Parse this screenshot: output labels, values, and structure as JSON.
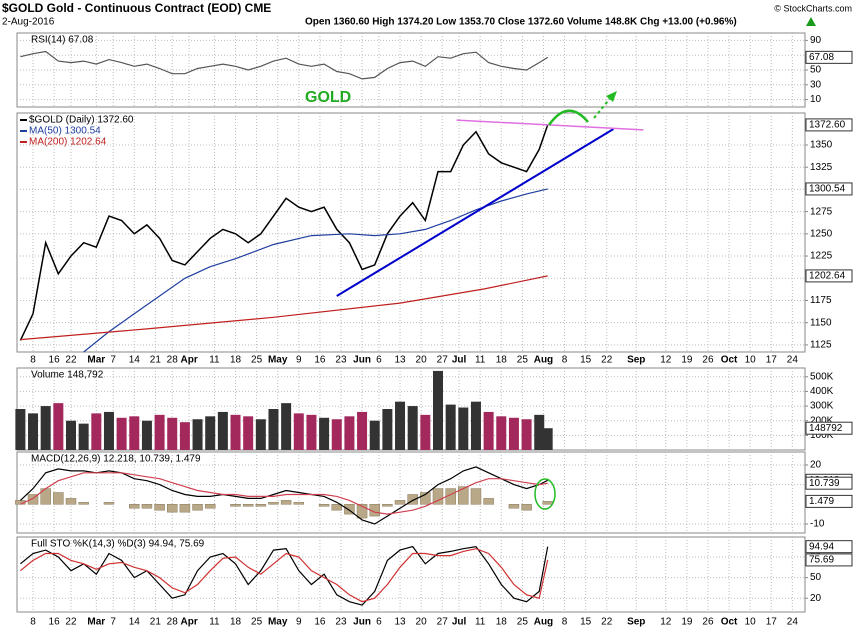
{
  "header": {
    "symbol_line": "$GOLD Gold - Continuous Contract (EOD) CME",
    "date": "2-Aug-2016",
    "quote": "Open 1360.60 High 1374.20 Low 1353.70 Close 1372.60 Volume 148.8K Chg +13.00 (+0.96%)",
    "credit": "© StockCharts.com"
  },
  "chart_data": [
    {
      "type": "line",
      "title": "RSI(14) 67.08",
      "ylim": [
        0,
        100
      ],
      "yticks": [
        10,
        30,
        50,
        70,
        90
      ],
      "grid": true,
      "tags": true,
      "x": [
        0,
        3,
        6,
        9,
        12,
        15,
        18,
        21,
        24,
        27,
        30,
        33,
        36,
        39,
        42,
        45,
        48,
        51,
        54,
        57,
        60,
        63,
        66,
        69,
        72,
        75,
        78,
        81,
        84,
        87,
        90,
        93,
        96,
        99,
        102,
        105,
        108,
        111,
        114,
        117,
        120,
        123,
        125
      ],
      "series": [
        {
          "name": "RSI(14)",
          "color": "#555555",
          "values": [
            68,
            72,
            75,
            62,
            60,
            62,
            58,
            64,
            60,
            55,
            58,
            52,
            45,
            45,
            52,
            55,
            58,
            55,
            50,
            55,
            62,
            66,
            58,
            55,
            58,
            48,
            45,
            38,
            40,
            52,
            60,
            62,
            55,
            68,
            66,
            72,
            74,
            60,
            55,
            52,
            50,
            60,
            67.08
          ]
        }
      ]
    },
    {
      "type": "line",
      "annotation": "GOLD",
      "ylim": [
        1117,
        1386
      ],
      "yticks": [
        1125,
        1150,
        1175,
        1200,
        1225,
        1250,
        1275,
        1300,
        1325,
        1350
      ],
      "grid": true,
      "tags": true,
      "legend": true,
      "xlim": [
        -0.8,
        186
      ],
      "xticks": [
        {
          "value": 3,
          "label": "8"
        },
        {
          "value": 8,
          "label": "16"
        },
        {
          "value": 12,
          "label": "22"
        },
        {
          "value": 18,
          "label": "Mar"
        },
        {
          "value": 22,
          "label": "7"
        },
        {
          "value": 27,
          "label": "14"
        },
        {
          "value": 32,
          "label": "21"
        },
        {
          "value": 36,
          "label": "28"
        },
        {
          "value": 40,
          "label": "Apr"
        },
        {
          "value": 46,
          "label": "11"
        },
        {
          "value": 51,
          "label": "18"
        },
        {
          "value": 56,
          "label": "25"
        },
        {
          "value": 61,
          "label": "May"
        },
        {
          "value": 66,
          "label": "9"
        },
        {
          "value": 71,
          "label": "16"
        },
        {
          "value": 76,
          "label": "23"
        },
        {
          "value": 81,
          "label": "Jun"
        },
        {
          "value": 85,
          "label": "6"
        },
        {
          "value": 90,
          "label": "13"
        },
        {
          "value": 95,
          "label": "20"
        },
        {
          "value": 100,
          "label": "27"
        },
        {
          "value": 104,
          "label": "Jul"
        },
        {
          "value": 109,
          "label": "11"
        },
        {
          "value": 114,
          "label": "18"
        },
        {
          "value": 119,
          "label": "25"
        },
        {
          "value": 124,
          "label": "Aug"
        },
        {
          "value": 129,
          "label": "8"
        },
        {
          "value": 134,
          "label": "15"
        },
        {
          "value": 139,
          "label": "22"
        },
        {
          "value": 146,
          "label": "Sep"
        },
        {
          "value": 153,
          "label": "12"
        },
        {
          "value": 158,
          "label": "19"
        },
        {
          "value": 163,
          "label": "26"
        },
        {
          "value": 168,
          "label": "Oct"
        },
        {
          "value": 173,
          "label": "10"
        },
        {
          "value": 178,
          "label": "17"
        },
        {
          "value": 183,
          "label": "24"
        }
      ],
      "x": [
        0,
        3,
        6,
        9,
        12,
        15,
        18,
        21,
        24,
        27,
        30,
        33,
        36,
        39,
        42,
        45,
        48,
        51,
        54,
        57,
        60,
        63,
        66,
        69,
        72,
        75,
        78,
        81,
        84,
        87,
        90,
        93,
        96,
        99,
        102,
        105,
        108,
        111,
        114,
        117,
        120,
        123,
        125
      ],
      "series": [
        {
          "name": "$GOLD (Daily) 1372.60",
          "color": "#000000",
          "tag_label": "1372.60",
          "values": [
            1130,
            1160,
            1240,
            1205,
            1225,
            1240,
            1235,
            1270,
            1265,
            1250,
            1260,
            1245,
            1220,
            1215,
            1230,
            1245,
            1255,
            1250,
            1240,
            1250,
            1270,
            1290,
            1280,
            1275,
            1280,
            1255,
            1240,
            1210,
            1215,
            1250,
            1270,
            1285,
            1265,
            1320,
            1320,
            1350,
            1365,
            1340,
            1330,
            1325,
            1320,
            1345,
            1372.6
          ]
        },
        {
          "name": "MA(50) 1300.54",
          "color": "#1f3fa0",
          "x": [
            15,
            21,
            30,
            39,
            45,
            51,
            60,
            69,
            78,
            84,
            90,
            96,
            102,
            108,
            114,
            120,
            125
          ],
          "values": [
            1117,
            1140,
            1170,
            1200,
            1213,
            1222,
            1238,
            1248,
            1250,
            1248,
            1250,
            1255,
            1265,
            1277,
            1287,
            1295,
            1300.54
          ]
        },
        {
          "name": "MA(200) 1202.64",
          "color": "#c0201f",
          "x": [
            0,
            30,
            60,
            90,
            110,
            125
          ],
          "values": [
            1131,
            1143,
            1156,
            1172,
            1188,
            1202.64
          ]
        }
      ],
      "trendlines": [
        {
          "color": "#0000cc",
          "points": [
            [
              75,
              1180
            ],
            [
              140.6,
              1368
            ]
          ]
        },
        {
          "color": "#e070e0",
          "points": [
            [
              103.4,
              1378
            ],
            [
              147.7,
              1367
            ]
          ]
        }
      ]
    },
    {
      "type": "bar",
      "title": "Volume 148,792",
      "ylim": [
        0,
        560000
      ],
      "yticks": [
        {
          "value": 100000,
          "label": "100K"
        },
        {
          "value": 200000,
          "label": "200K"
        },
        {
          "value": 300000,
          "label": "300K"
        },
        {
          "value": 400000,
          "label": "400K"
        },
        {
          "value": 500000,
          "label": "500K"
        }
      ],
      "grid": true,
      "tags": true,
      "up_color": "#333333",
      "down_color": "#a3285c",
      "x": [
        0,
        3,
        6,
        9,
        12,
        15,
        18,
        21,
        24,
        27,
        30,
        33,
        36,
        39,
        42,
        45,
        48,
        51,
        54,
        57,
        60,
        63,
        66,
        69,
        72,
        75,
        78,
        81,
        84,
        87,
        90,
        93,
        96,
        99,
        102,
        105,
        108,
        111,
        114,
        117,
        120,
        123,
        125
      ],
      "series": [
        {
          "name": "Volume",
          "color": "#333333",
          "values": [
            280000,
            250000,
            300000,
            320000,
            200000,
            180000,
            250000,
            260000,
            220000,
            230000,
            200000,
            240000,
            220000,
            190000,
            210000,
            230000,
            260000,
            240000,
            230000,
            210000,
            280000,
            320000,
            250000,
            240000,
            220000,
            210000,
            230000,
            260000,
            200000,
            280000,
            330000,
            300000,
            240000,
            540000,
            310000,
            290000,
            330000,
            260000,
            230000,
            220000,
            210000,
            240000,
            148792
          ]
        }
      ]
    },
    {
      "type": "line",
      "title": "MACD(12,26,9) 12.218, 10.739, 1.479",
      "ylim": [
        -14.6,
        26.6
      ],
      "yticks": [
        -10,
        10,
        20
      ],
      "grid": true,
      "tags": true,
      "x": [
        0,
        3,
        6,
        9,
        12,
        15,
        18,
        21,
        24,
        27,
        30,
        33,
        36,
        39,
        42,
        45,
        48,
        51,
        54,
        57,
        60,
        63,
        66,
        69,
        72,
        75,
        78,
        81,
        84,
        87,
        90,
        93,
        96,
        99,
        102,
        105,
        108,
        111,
        114,
        117,
        120,
        123,
        125
      ],
      "series": [
        {
          "name": "Histogram",
          "type": "bar",
          "color": "#b8a888",
          "values": [
            2,
            5,
            8,
            6,
            3,
            1,
            0,
            1,
            0,
            -2,
            -2,
            -3,
            -4,
            -4,
            -3,
            -2,
            0,
            -1,
            -1,
            -1,
            1,
            2,
            1,
            0,
            -1,
            -3,
            -5,
            -7,
            -6,
            -1,
            2,
            5,
            6,
            8,
            8,
            9,
            8,
            3,
            0,
            -2,
            -3,
            0,
            1.479
          ]
        },
        {
          "name": "MACD",
          "color": "#000000",
          "values": [
            2,
            8,
            16,
            18,
            17,
            17,
            16,
            17,
            16,
            13,
            12,
            10,
            7,
            5,
            4,
            4,
            5,
            4,
            3,
            3,
            5,
            7,
            6,
            5,
            4,
            1,
            -3,
            -8,
            -10,
            -6,
            -2,
            2,
            5,
            10,
            13,
            17,
            19,
            16,
            13,
            10,
            8,
            10,
            12.218
          ]
        },
        {
          "name": "Signal",
          "color": "#d04050",
          "values": [
            0,
            3,
            8,
            12,
            14,
            16,
            16,
            16,
            16,
            15,
            14,
            13,
            11,
            9,
            7,
            6,
            5,
            5,
            4,
            4,
            4,
            5,
            5,
            5,
            5,
            4,
            2,
            -1,
            -4,
            -5,
            -4,
            -3,
            -1,
            2,
            5,
            8,
            11,
            13,
            13,
            12,
            11,
            10,
            10.739
          ]
        }
      ]
    },
    {
      "type": "line",
      "title": "Full STO %K(14,3) %D(3) 94.94, 75.69",
      "ylim": [
        0,
        109
      ],
      "yticks": [
        20,
        50,
        80
      ],
      "grid": true,
      "tags": true,
      "x": [
        0,
        3,
        6,
        9,
        12,
        15,
        18,
        21,
        24,
        27,
        30,
        33,
        36,
        39,
        42,
        45,
        48,
        51,
        54,
        57,
        60,
        63,
        66,
        69,
        72,
        75,
        78,
        81,
        84,
        87,
        90,
        93,
        96,
        99,
        102,
        105,
        108,
        111,
        114,
        117,
        120,
        123,
        125
      ],
      "series": [
        {
          "name": "%K",
          "color": "#000000",
          "values": [
            70,
            85,
            90,
            80,
            60,
            70,
            55,
            85,
            75,
            50,
            60,
            40,
            20,
            25,
            60,
            80,
            85,
            70,
            40,
            60,
            90,
            92,
            60,
            40,
            55,
            25,
            15,
            10,
            30,
            75,
            90,
            95,
            70,
            85,
            88,
            92,
            95,
            70,
            40,
            20,
            15,
            30,
            94.94
          ]
        },
        {
          "name": "%D",
          "color": "#d03030",
          "values": [
            60,
            75,
            85,
            85,
            75,
            70,
            62,
            70,
            72,
            65,
            60,
            50,
            35,
            28,
            40,
            60,
            78,
            80,
            65,
            55,
            70,
            85,
            80,
            60,
            50,
            40,
            25,
            15,
            20,
            40,
            65,
            85,
            85,
            82,
            82,
            88,
            92,
            85,
            65,
            40,
            25,
            20,
            75.69
          ]
        }
      ]
    }
  ]
}
